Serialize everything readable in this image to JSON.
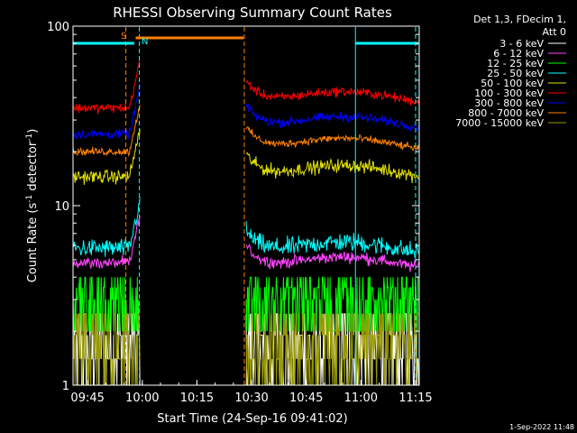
{
  "chart_data": {
    "type": "line",
    "title": "RHESSI Observing Summary Count Rates",
    "xlabel": "Start Time (24-Sep-16 09:41:02)",
    "ylabel_main": "Count Rate (s",
    "ylabel_sup1": "-1",
    "ylabel_mid": " detector",
    "ylabel_sup2": "-1",
    "ylabel_end": ")",
    "yscale": "log",
    "ylim": [
      1,
      100
    ],
    "xlim_minutes": [
      0,
      95
    ],
    "x_ticks": [
      {
        "label": "09:45",
        "min": 4
      },
      {
        "label": "10:00",
        "min": 19
      },
      {
        "label": "10:15",
        "min": 34
      },
      {
        "label": "10:30",
        "min": 49
      },
      {
        "label": "10:45",
        "min": 64
      },
      {
        "label": "11:00",
        "min": 79
      },
      {
        "label": "11:15",
        "min": 94
      }
    ],
    "y_ticks": [
      {
        "label": "1",
        "value": 1
      },
      {
        "label": "10",
        "value": 10
      },
      {
        "label": "100",
        "value": 100
      }
    ],
    "legend_header": [
      "Det 1,3, FDecim 1,",
      "Att 0"
    ],
    "footer_date": "1-Sep-2022 11:48",
    "flags": {
      "s_label": "S",
      "n_label": "N"
    },
    "segments": [
      [
        0,
        18.5
      ],
      [
        47.5,
        95
      ]
    ],
    "series": [
      {
        "name": "3 - 6 keV",
        "color": "#ffffff",
        "pre": 1.4,
        "post": 1.4,
        "noise": 0.45
      },
      {
        "name": "6 - 12 keV",
        "color": "#ff44ff",
        "pre": 4.8,
        "post": 4.8,
        "noise": 0.06
      },
      {
        "name": "12 - 25 keV",
        "color": "#00ff00",
        "pre": 3.5,
        "post": 3.6,
        "noise": 0.25
      },
      {
        "name": "25 - 50 keV",
        "color": "#00ffff",
        "pre": 5.8,
        "post": 5.8,
        "noise": 0.1
      },
      {
        "name": "50 - 100 keV",
        "color": "#e0e000",
        "pre": 14.5,
        "post": 15.5,
        "noise": 0.07
      },
      {
        "name": "100 - 300 keV",
        "color": "#ff0000",
        "pre": 35,
        "post": 40,
        "noise": 0.05
      },
      {
        "name": "300 - 800 keV",
        "color": "#0000ff",
        "pre": 25,
        "post": 29,
        "noise": 0.05
      },
      {
        "name": "800 - 7000 keV",
        "color": "#ff8000",
        "pre": 20,
        "post": 22,
        "noise": 0.04
      },
      {
        "name": "7000 - 15000 keV",
        "color": "#999900",
        "pre": 1.4,
        "post": 1.4,
        "noise": 0.4
      }
    ],
    "colors": {
      "axes": "#ffffff",
      "saa": "#ff8000",
      "night": "#00ffff",
      "flare": "#ff8000"
    }
  }
}
